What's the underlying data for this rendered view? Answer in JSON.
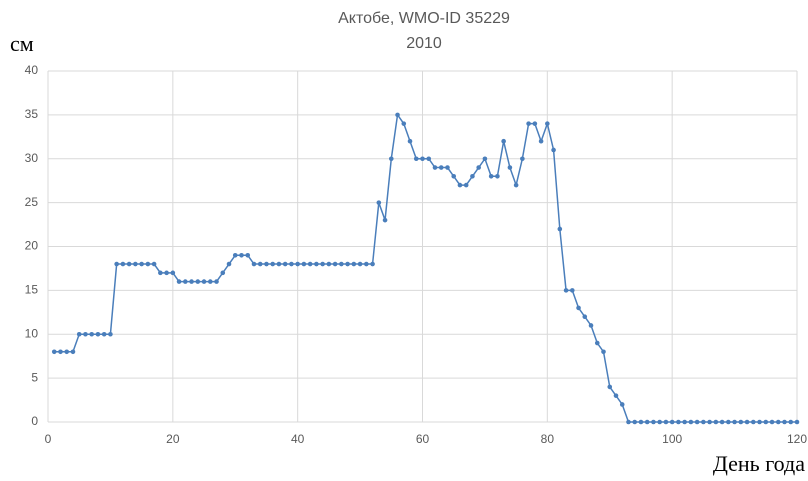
{
  "chart_data": {
    "type": "line",
    "title": "Актобе, WMO-ID 35229",
    "subtitle": "2010",
    "y_label": "см",
    "x_label": "День года",
    "x": [
      1,
      2,
      3,
      4,
      5,
      6,
      7,
      8,
      9,
      10,
      11,
      12,
      13,
      14,
      15,
      16,
      17,
      18,
      19,
      20,
      21,
      22,
      23,
      24,
      25,
      26,
      27,
      28,
      29,
      30,
      31,
      32,
      33,
      34,
      35,
      36,
      37,
      38,
      39,
      40,
      41,
      42,
      43,
      44,
      45,
      46,
      47,
      48,
      49,
      50,
      51,
      52,
      53,
      54,
      55,
      56,
      57,
      58,
      59,
      60,
      61,
      62,
      63,
      64,
      65,
      66,
      67,
      68,
      69,
      70,
      71,
      72,
      73,
      74,
      75,
      76,
      77,
      78,
      79,
      80,
      81,
      82,
      83,
      84,
      85,
      86,
      87,
      88,
      89,
      90,
      91,
      92,
      93,
      94,
      95,
      96,
      97,
      98,
      99,
      100,
      101,
      102,
      103,
      104,
      105,
      106,
      107,
      108,
      109,
      110,
      111,
      112,
      113,
      114,
      115,
      116,
      117,
      118,
      119,
      120
    ],
    "series": [
      {
        "color": "#4a7ebb",
        "values": [
          8,
          8,
          8,
          8,
          10,
          10,
          10,
          10,
          10,
          10,
          18,
          18,
          18,
          18,
          18,
          18,
          18,
          17,
          17,
          17,
          16,
          16,
          16,
          16,
          16,
          16,
          16,
          17,
          18,
          19,
          19,
          19,
          18,
          18,
          18,
          18,
          18,
          18,
          18,
          18,
          18,
          18,
          18,
          18,
          18,
          18,
          18,
          18,
          18,
          18,
          18,
          18,
          25,
          23,
          30,
          35,
          34,
          32,
          30,
          30,
          30,
          29,
          29,
          29,
          28,
          27,
          27,
          28,
          29,
          30,
          28,
          28,
          32,
          29,
          27,
          30,
          34,
          34,
          32,
          34,
          31,
          22,
          15,
          15,
          13,
          12,
          11,
          9,
          8,
          4,
          3,
          2,
          0,
          0,
          0,
          0,
          0,
          0,
          0,
          0,
          0,
          0,
          0,
          0,
          0,
          0,
          0,
          0,
          0,
          0,
          0,
          0,
          0,
          0,
          0,
          0,
          0,
          0,
          0,
          0
        ]
      }
    ],
    "xlim": [
      0,
      120
    ],
    "xticks": [
      0,
      20,
      40,
      60,
      80,
      100,
      120
    ],
    "ylim": [
      0,
      40
    ],
    "yticks": [
      0,
      5,
      10,
      15,
      20,
      25,
      30,
      35,
      40
    ],
    "grid": true
  }
}
